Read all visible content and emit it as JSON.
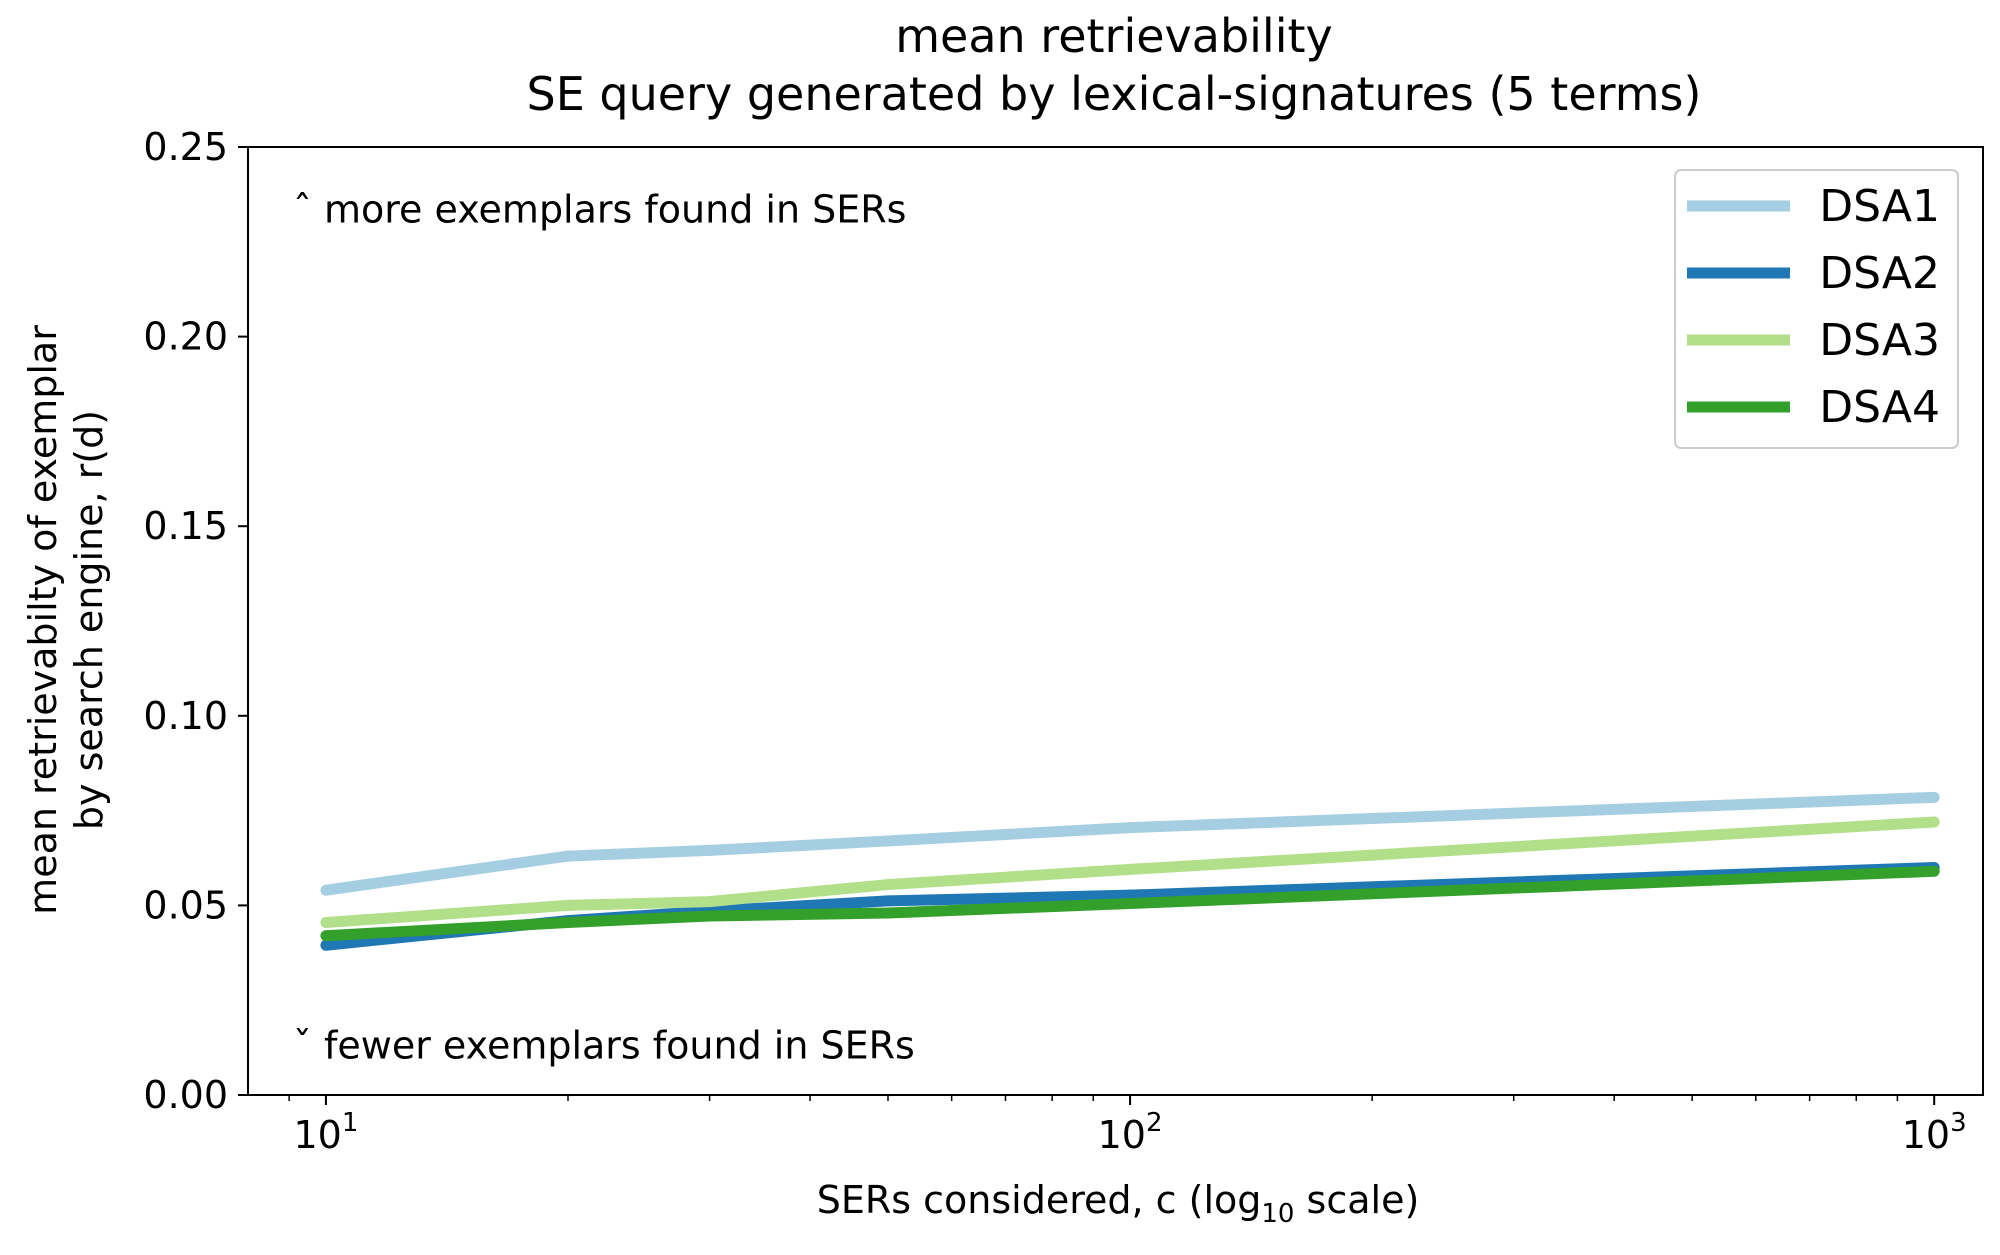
{
  "chart_data": {
    "type": "line",
    "title": "mean retrievability",
    "subtitle": "SE query generated by lexical-signatures (5 terms)",
    "xlabel_pre": "SERs considered, c (log",
    "xlabel_sub": "10",
    "xlabel_post": " scale)",
    "ylabel_line1": "mean retrievabilty of exemplar",
    "ylabel_line2": "by search engine, r(d)",
    "x_scale": "log10",
    "xlim": [
      8,
      1150
    ],
    "ylim": [
      0,
      0.25
    ],
    "x_ticks": [
      {
        "value": 10,
        "base": "10",
        "exp": "1"
      },
      {
        "value": 100,
        "base": "10",
        "exp": "2"
      },
      {
        "value": 1000,
        "base": "10",
        "exp": "3"
      }
    ],
    "y_ticks": [
      {
        "value": 0.0,
        "label": "0.00"
      },
      {
        "value": 0.05,
        "label": "0.05"
      },
      {
        "value": 0.1,
        "label": "0.10"
      },
      {
        "value": 0.15,
        "label": "0.15"
      },
      {
        "value": 0.2,
        "label": "0.20"
      },
      {
        "value": 0.25,
        "label": "0.25"
      }
    ],
    "grid": false,
    "legend_position": "top-right",
    "annotations": [
      {
        "text": "ˆ more exemplars found in SERs",
        "x": 10,
        "y": 0.2335
      },
      {
        "text": "ˇ fewer exemplars found in SERs",
        "x": 10,
        "y": 0.013
      }
    ],
    "x": [
      10,
      20,
      30,
      50,
      100,
      1000
    ],
    "series": [
      {
        "name": "DSA1",
        "color": "#a6cee3",
        "values": [
          0.054,
          0.063,
          0.0645,
          0.067,
          0.0705,
          0.0785
        ]
      },
      {
        "name": "DSA2",
        "color": "#1f78b4",
        "values": [
          0.0395,
          0.046,
          0.0485,
          0.0512,
          0.0527,
          0.06
        ]
      },
      {
        "name": "DSA3",
        "color": "#b2df8a",
        "values": [
          0.0455,
          0.05,
          0.051,
          0.0555,
          0.0595,
          0.072
        ]
      },
      {
        "name": "DSA4",
        "color": "#33a02c",
        "values": [
          0.042,
          0.0455,
          0.0472,
          0.048,
          0.0505,
          0.059
        ]
      }
    ]
  }
}
